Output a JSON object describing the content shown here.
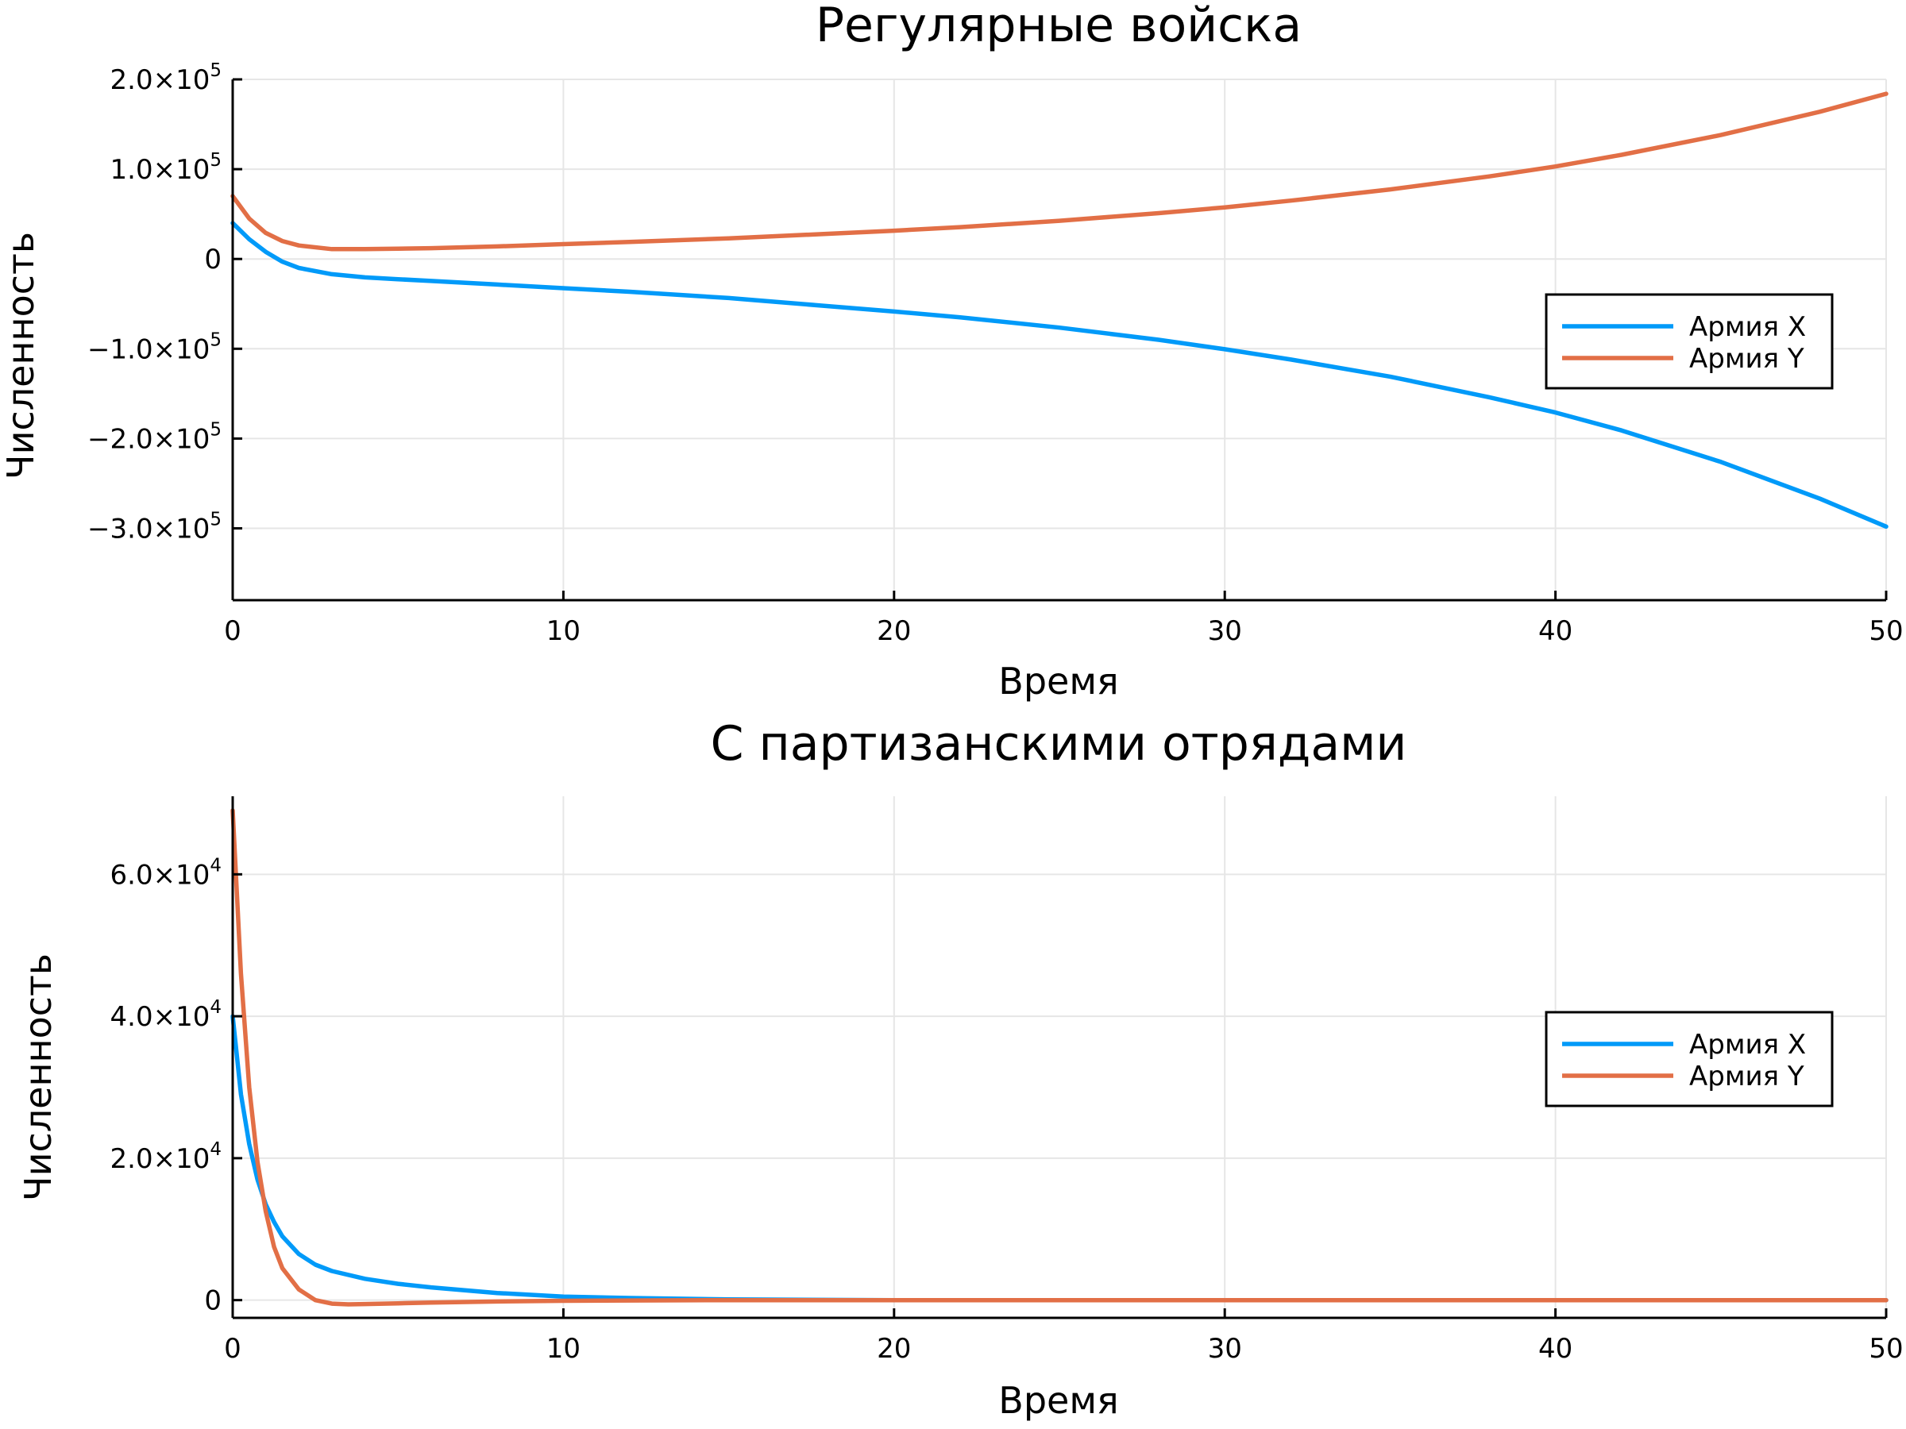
{
  "chart_data": [
    {
      "type": "line",
      "title": "Регулярные войска",
      "xlabel": "Время",
      "ylabel": "Численность",
      "xlim": [
        0,
        50
      ],
      "ylim": [
        -380000,
        200000
      ],
      "x_ticks": [
        0,
        10,
        20,
        30,
        40,
        50
      ],
      "x_tick_labels": [
        "0",
        "10",
        "20",
        "30",
        "40",
        "50"
      ],
      "y_ticks": [
        {
          "value": 200000,
          "mantissa": "2.0×10",
          "exp": "5"
        },
        {
          "value": 100000,
          "mantissa": "1.0×10",
          "exp": "5"
        },
        {
          "value": 0,
          "mantissa": "0",
          "exp": ""
        },
        {
          "value": -100000,
          "mantissa": "−1.0×10",
          "exp": "5"
        },
        {
          "value": -200000,
          "mantissa": "−2.0×10",
          "exp": "5"
        },
        {
          "value": -300000,
          "mantissa": "−3.0×10",
          "exp": "5"
        }
      ],
      "grid": true,
      "legend_position": "right",
      "series": [
        {
          "name": "Армия X",
          "color": "#009af9",
          "x": [
            0,
            0.5,
            1,
            1.5,
            2,
            3,
            4,
            5,
            6,
            8,
            10,
            12,
            15,
            18,
            20,
            22,
            25,
            28,
            30,
            32,
            35,
            38,
            40,
            42,
            45,
            48,
            50
          ],
          "y": [
            40000,
            22000,
            8000,
            -3000,
            -10000,
            -17000,
            -20500,
            -22500,
            -24500,
            -28500,
            -32500,
            -36500,
            -43500,
            -52500,
            -58500,
            -65000,
            -76500,
            -90000,
            -100500,
            -112000,
            -131000,
            -154000,
            -171000,
            -191000,
            -226000,
            -267000,
            -298000
          ]
        },
        {
          "name": "Армия Y",
          "color": "#e26f46",
          "x": [
            0,
            0.5,
            1,
            1.5,
            2,
            3,
            4,
            5,
            6,
            8,
            10,
            12,
            15,
            18,
            20,
            22,
            25,
            28,
            30,
            32,
            35,
            38,
            40,
            42,
            45,
            48,
            50
          ],
          "y": [
            70000,
            45000,
            29000,
            20000,
            15000,
            11000,
            11000,
            11500,
            12000,
            14000,
            16500,
            19000,
            23000,
            28000,
            31500,
            35500,
            42500,
            51000,
            57500,
            65000,
            77500,
            92000,
            103000,
            116000,
            138000,
            164000,
            184000
          ]
        }
      ]
    },
    {
      "type": "line",
      "title": "С партизанскими отрядами",
      "xlabel": "Время",
      "ylabel": "Численность",
      "xlim": [
        0,
        50
      ],
      "ylim": [
        -2500,
        71000
      ],
      "x_ticks": [
        0,
        10,
        20,
        30,
        40,
        50
      ],
      "x_tick_labels": [
        "0",
        "10",
        "20",
        "30",
        "40",
        "50"
      ],
      "y_ticks": [
        {
          "value": 0,
          "mantissa": "0",
          "exp": ""
        },
        {
          "value": 20000,
          "mantissa": "2.0×10",
          "exp": "4"
        },
        {
          "value": 40000,
          "mantissa": "4.0×10",
          "exp": "4"
        },
        {
          "value": 60000,
          "mantissa": "6.0×10",
          "exp": "4"
        }
      ],
      "grid": true,
      "legend_position": "right",
      "series": [
        {
          "name": "Армия X",
          "color": "#009af9",
          "x": [
            0,
            0.25,
            0.5,
            0.75,
            1,
            1.25,
            1.5,
            2,
            2.5,
            3,
            4,
            5,
            6,
            8,
            10,
            12,
            15,
            20,
            30,
            40,
            50
          ],
          "y": [
            40000,
            29000,
            22000,
            17000,
            13500,
            11000,
            9000,
            6500,
            5000,
            4100,
            3000,
            2300,
            1800,
            1000,
            500,
            300,
            100,
            0,
            0,
            0,
            0
          ]
        },
        {
          "name": "Армия Y",
          "color": "#e26f46",
          "x": [
            0,
            0.25,
            0.5,
            0.75,
            1,
            1.25,
            1.5,
            2,
            2.5,
            3,
            3.5,
            4,
            5,
            6,
            8,
            10,
            12,
            15,
            20,
            30,
            40,
            50
          ],
          "y": [
            69000,
            46000,
            30000,
            19500,
            12500,
            7500,
            4500,
            1500,
            0,
            -500,
            -600,
            -550,
            -450,
            -350,
            -200,
            -100,
            -50,
            0,
            0,
            0,
            0,
            0
          ]
        }
      ]
    }
  ]
}
